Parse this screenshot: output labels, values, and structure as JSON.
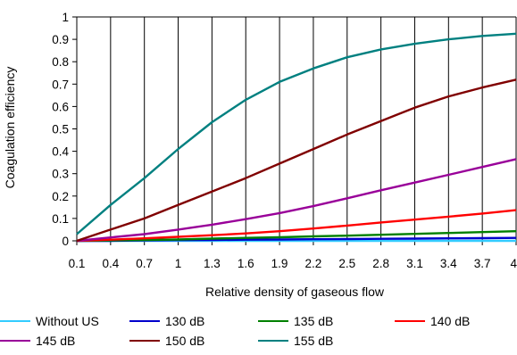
{
  "chart_data": {
    "type": "line",
    "title": "",
    "xlabel": "Relative density of gaseous flow",
    "ylabel": "Coagulation efficiency",
    "xlim": [
      0.1,
      4.0
    ],
    "ylim": [
      0,
      1
    ],
    "x_ticks": [
      "0.1",
      "0.4",
      "0.7",
      "1",
      "1.3",
      "1.6",
      "1.9",
      "2.2",
      "2.5",
      "2.8",
      "3.1",
      "3.4",
      "3.7",
      "4"
    ],
    "y_ticks": [
      "0",
      "0.1",
      "0.2",
      "0.3",
      "0.4",
      "0.5",
      "0.6",
      "0.7",
      "0.8",
      "0.9",
      "1"
    ],
    "grid": "vertical",
    "legend_position": "bottom",
    "x": [
      0.1,
      0.4,
      0.7,
      1.0,
      1.3,
      1.6,
      1.9,
      2.2,
      2.5,
      2.8,
      3.1,
      3.4,
      3.7,
      4.0
    ],
    "series": [
      {
        "name": "Without US",
        "color": "#33ccff",
        "values": [
          0,
          0,
          0,
          0,
          0,
          0,
          0,
          0,
          0,
          0,
          0,
          0,
          0,
          0
        ]
      },
      {
        "name": "130 dB",
        "color": "#0000cc",
        "values": [
          0,
          0,
          0.002,
          0.003,
          0.004,
          0.005,
          0.006,
          0.007,
          0.008,
          0.009,
          0.01,
          0.011,
          0.012,
          0.013
        ]
      },
      {
        "name": "135 dB",
        "color": "#008000",
        "values": [
          0,
          0.002,
          0.004,
          0.006,
          0.01,
          0.013,
          0.016,
          0.02,
          0.023,
          0.027,
          0.031,
          0.035,
          0.039,
          0.043
        ]
      },
      {
        "name": "140 dB",
        "color": "#ff0000",
        "values": [
          0,
          0.005,
          0.011,
          0.018,
          0.025,
          0.033,
          0.043,
          0.055,
          0.068,
          0.082,
          0.095,
          0.108,
          0.122,
          0.137
        ]
      },
      {
        "name": "145 dB",
        "color": "#990099",
        "values": [
          0,
          0.015,
          0.03,
          0.05,
          0.072,
          0.097,
          0.124,
          0.155,
          0.19,
          0.226,
          0.26,
          0.295,
          0.33,
          0.365
        ]
      },
      {
        "name": "150 dB",
        "color": "#800000",
        "values": [
          0,
          0.05,
          0.1,
          0.16,
          0.22,
          0.28,
          0.345,
          0.41,
          0.475,
          0.535,
          0.595,
          0.645,
          0.685,
          0.72
        ]
      },
      {
        "name": "155 dB",
        "color": "#008080",
        "values": [
          0.03,
          0.16,
          0.28,
          0.41,
          0.53,
          0.63,
          0.71,
          0.77,
          0.82,
          0.855,
          0.88,
          0.9,
          0.915,
          0.925
        ]
      }
    ]
  }
}
